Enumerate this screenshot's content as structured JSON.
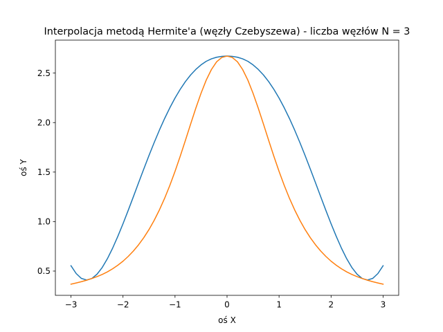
{
  "chart_data": {
    "type": "line",
    "title": "Interpolacja metodą Hermite'a (węzły Czebyszewa) - liczba węzłów N = 3",
    "xlabel": "oś X",
    "ylabel": "oś Y",
    "xlim": [
      -3.3,
      3.3
    ],
    "ylim": [
      0.255,
      2.833
    ],
    "grid": false,
    "legend": "none",
    "xticks": [
      {
        "value": -3,
        "label": "−3"
      },
      {
        "value": -2,
        "label": "−2"
      },
      {
        "value": -1,
        "label": "−1"
      },
      {
        "value": 0,
        "label": "0"
      },
      {
        "value": 1,
        "label": "1"
      },
      {
        "value": 2,
        "label": "2"
      },
      {
        "value": 3,
        "label": "3"
      }
    ],
    "yticks": [
      {
        "value": 0.5,
        "label": "0.5"
      },
      {
        "value": 1.0,
        "label": "1.0"
      },
      {
        "value": 1.5,
        "label": "1.5"
      },
      {
        "value": 2.0,
        "label": "2.0"
      },
      {
        "value": 2.5,
        "label": "2.5"
      }
    ],
    "series": [
      {
        "color": "#1f77b4",
        "x": [
          -3.0,
          -2.9,
          -2.8,
          -2.7,
          -2.6,
          -2.5,
          -2.4,
          -2.3,
          -2.2,
          -2.1,
          -2.0,
          -1.9,
          -1.8,
          -1.7,
          -1.6,
          -1.5,
          -1.4,
          -1.3,
          -1.2,
          -1.1,
          -1.0,
          -0.9,
          -0.8,
          -0.7,
          -0.6,
          -0.5,
          -0.4,
          -0.3,
          -0.2,
          -0.1,
          0.0,
          0.1,
          0.2,
          0.3,
          0.4,
          0.5,
          0.6,
          0.7,
          0.8,
          0.9,
          1.0,
          1.1,
          1.2,
          1.3,
          1.4,
          1.5,
          1.6,
          1.7,
          1.8,
          1.9,
          2.0,
          2.1,
          2.2,
          2.3,
          2.4,
          2.5,
          2.6,
          2.7,
          2.8,
          2.9,
          3.0
        ],
        "y": [
          0.554,
          0.475,
          0.426,
          0.41,
          0.425,
          0.468,
          0.536,
          0.625,
          0.731,
          0.85,
          0.978,
          1.113,
          1.252,
          1.393,
          1.532,
          1.668,
          1.799,
          1.924,
          2.041,
          2.149,
          2.248,
          2.336,
          2.414,
          2.481,
          2.537,
          2.583,
          2.619,
          2.644,
          2.66,
          2.669,
          2.672,
          2.669,
          2.66,
          2.644,
          2.619,
          2.583,
          2.537,
          2.481,
          2.414,
          2.336,
          2.248,
          2.149,
          2.041,
          1.924,
          1.799,
          1.668,
          1.532,
          1.393,
          1.252,
          1.113,
          0.978,
          0.85,
          0.731,
          0.625,
          0.536,
          0.468,
          0.425,
          0.41,
          0.426,
          0.475,
          0.554
        ]
      },
      {
        "color": "#ff7f0e",
        "x": [
          -3.0,
          -2.9,
          -2.8,
          -2.7,
          -2.6,
          -2.5,
          -2.4,
          -2.3,
          -2.2,
          -2.1,
          -2.0,
          -1.9,
          -1.8,
          -1.7,
          -1.6,
          -1.5,
          -1.4,
          -1.3,
          -1.2,
          -1.1,
          -1.0,
          -0.9,
          -0.8,
          -0.7,
          -0.6,
          -0.5,
          -0.4,
          -0.3,
          -0.2,
          -0.1,
          0.0,
          0.1,
          0.2,
          0.3,
          0.4,
          0.5,
          0.6,
          0.7,
          0.8,
          0.9,
          1.0,
          1.1,
          1.2,
          1.3,
          1.4,
          1.5,
          1.6,
          1.7,
          1.8,
          1.9,
          2.0,
          2.1,
          2.2,
          2.3,
          2.4,
          2.5,
          2.6,
          2.7,
          2.8,
          2.9,
          3.0
        ],
        "y": [
          0.368,
          0.38,
          0.393,
          0.408,
          0.425,
          0.444,
          0.466,
          0.492,
          0.523,
          0.559,
          0.6,
          0.648,
          0.703,
          0.766,
          0.838,
          0.92,
          1.013,
          1.118,
          1.235,
          1.365,
          1.507,
          1.66,
          1.821,
          1.985,
          2.146,
          2.296,
          2.429,
          2.536,
          2.614,
          2.658,
          2.672,
          2.658,
          2.614,
          2.536,
          2.429,
          2.296,
          2.146,
          1.985,
          1.821,
          1.66,
          1.507,
          1.365,
          1.235,
          1.118,
          1.013,
          0.92,
          0.838,
          0.766,
          0.703,
          0.648,
          0.6,
          0.559,
          0.523,
          0.492,
          0.466,
          0.444,
          0.425,
          0.408,
          0.393,
          0.38,
          0.368
        ]
      }
    ]
  }
}
